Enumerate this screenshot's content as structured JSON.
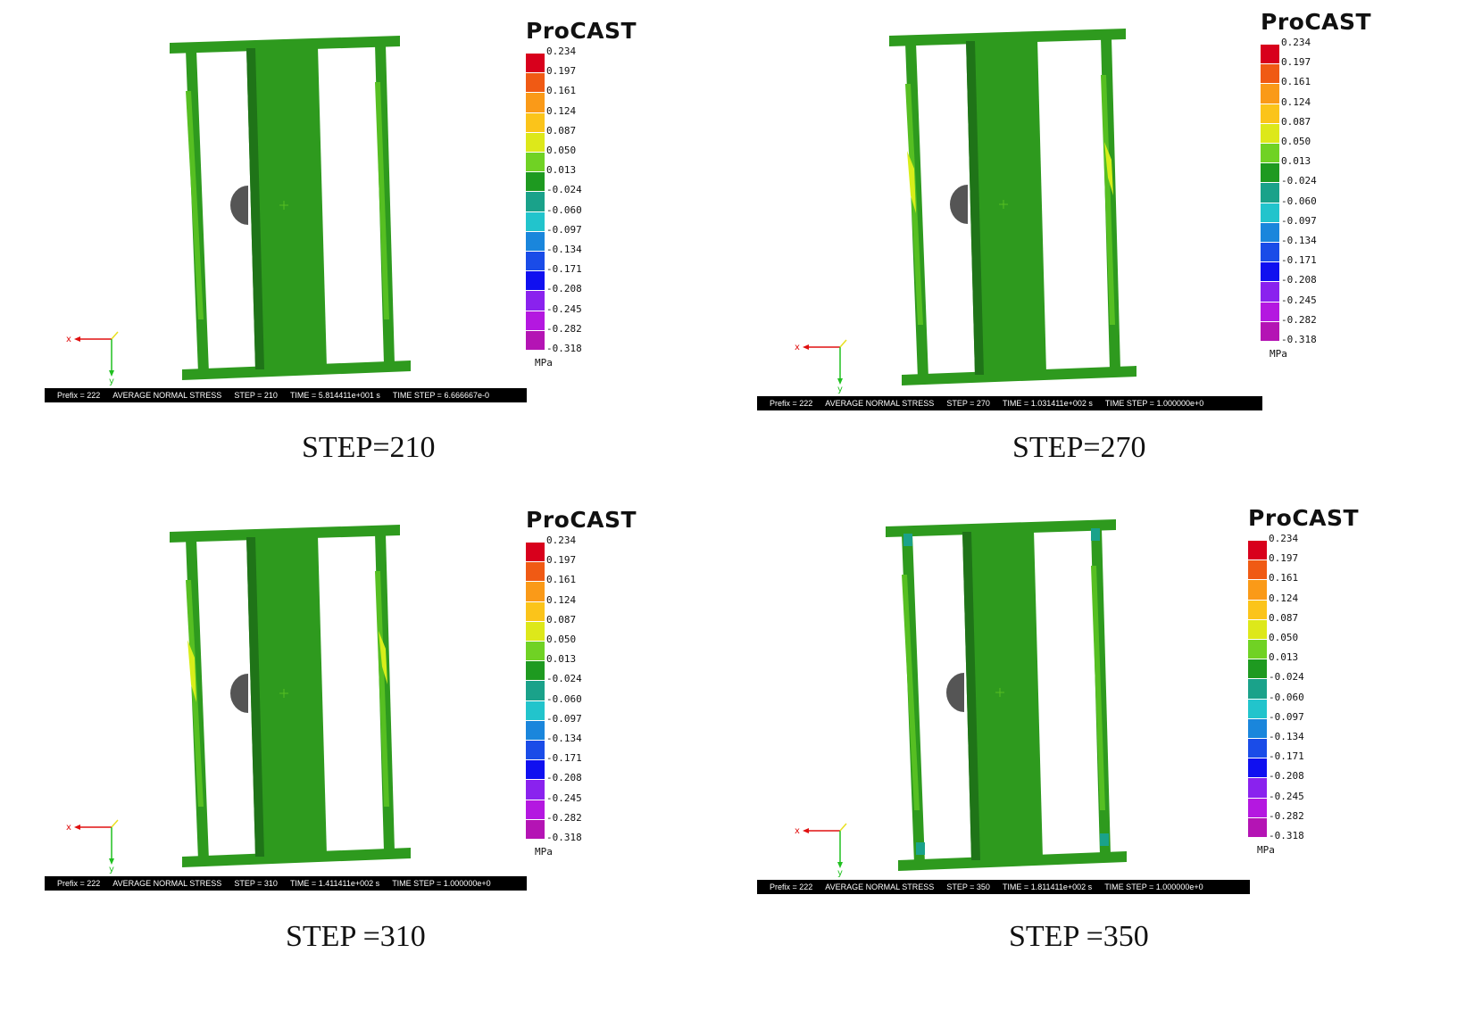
{
  "brand": "ProCAST",
  "legend": {
    "values": [
      "0.234",
      "0.197",
      "0.161",
      "0.124",
      "0.087",
      "0.050",
      "0.013",
      "-0.024",
      "-0.060",
      "-0.097",
      "-0.134",
      "-0.171",
      "-0.208",
      "-0.245",
      "-0.282",
      "-0.318"
    ],
    "colors": [
      "#d8001c",
      "#f05a14",
      "#fa9a18",
      "#fbc41a",
      "#dde81a",
      "#70d224",
      "#1e9a20",
      "#1aa28a",
      "#22c4cc",
      "#1a86dc",
      "#1a4ce8",
      "#1010f0",
      "#8a22ee",
      "#b418e0",
      "#b414b4"
    ],
    "unit": "MPa"
  },
  "axes": {
    "x": "x",
    "y": "y"
  },
  "panels": [
    {
      "caption": "STEP=210",
      "status": {
        "prefix": "Prefix = 222",
        "quantity": "AVERAGE NORMAL STRESS",
        "step": "STEP = 210",
        "time": "TIME = 5.814411e+001  s",
        "time_step": "TIME STEP = 6.666667e-0"
      }
    },
    {
      "caption": "STEP=270",
      "status": {
        "prefix": "Prefix = 222",
        "quantity": "AVERAGE NORMAL STRESS",
        "step": "STEP = 270",
        "time": "TIME = 1.031411e+002  s",
        "time_step": "TIME STEP = 1.000000e+0"
      }
    },
    {
      "caption": "STEP =310",
      "status": {
        "prefix": "Prefix = 222",
        "quantity": "AVERAGE NORMAL STRESS",
        "step": "STEP = 310",
        "time": "TIME = 1.411411e+002  s",
        "time_step": "TIME STEP = 1.000000e+0"
      }
    },
    {
      "caption": "STEP =350",
      "status": {
        "prefix": "Prefix = 222",
        "quantity": "AVERAGE NORMAL STRESS",
        "step": "STEP = 350",
        "time": "TIME = 1.811411e+002  s",
        "time_step": "TIME STEP = 1.000000e+0"
      }
    }
  ],
  "colors": {
    "frame": "#2e9a1e",
    "frame_dark": "#1f7418",
    "frame_light": "#56bf22",
    "yellow": "#d8ee1a",
    "teal": "#1aa28a",
    "hole": "#555555"
  }
}
